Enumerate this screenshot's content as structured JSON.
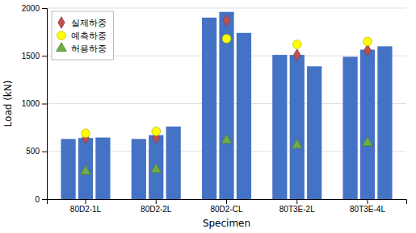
{
  "chart_data": {
    "type": "bar",
    "categories": [
      "80D2-1L",
      "80D2-2L",
      "80D2-CL",
      "80T3E-2L",
      "80T3E-4L"
    ],
    "series": [
      {
        "type": "bar",
        "color": "#4472C4",
        "values": [
          630,
          630,
          1900,
          1510,
          1490
        ]
      },
      {
        "type": "bar",
        "color": "#4472C4",
        "values": [
          640,
          670,
          1960,
          1510,
          1565
        ]
      },
      {
        "type": "bar",
        "color": "#4472C4",
        "values": [
          645,
          760,
          1740,
          1390,
          1600
        ]
      },
      {
        "name": "실제하중",
        "type": "scatter",
        "marker": "diamond",
        "color": "#C0504D",
        "values": [
          640,
          645,
          1870,
          1510,
          1560
        ]
      },
      {
        "name": "예측하중",
        "type": "scatter",
        "marker": "circle",
        "color": "#FFFF00",
        "values": [
          690,
          710,
          1680,
          1620,
          1650
        ]
      },
      {
        "name": "허용하중",
        "type": "scatter",
        "marker": "triangle",
        "color": "#70AD47",
        "values": [
          290,
          310,
          615,
          565,
          590
        ]
      }
    ],
    "xlabel": "Specimen",
    "ylabel": "Load (kN)",
    "ylim": [
      0,
      2000
    ],
    "yticks": [
      0,
      500,
      1000,
      1500,
      2000
    ],
    "grid": true,
    "legend": "upper left"
  }
}
